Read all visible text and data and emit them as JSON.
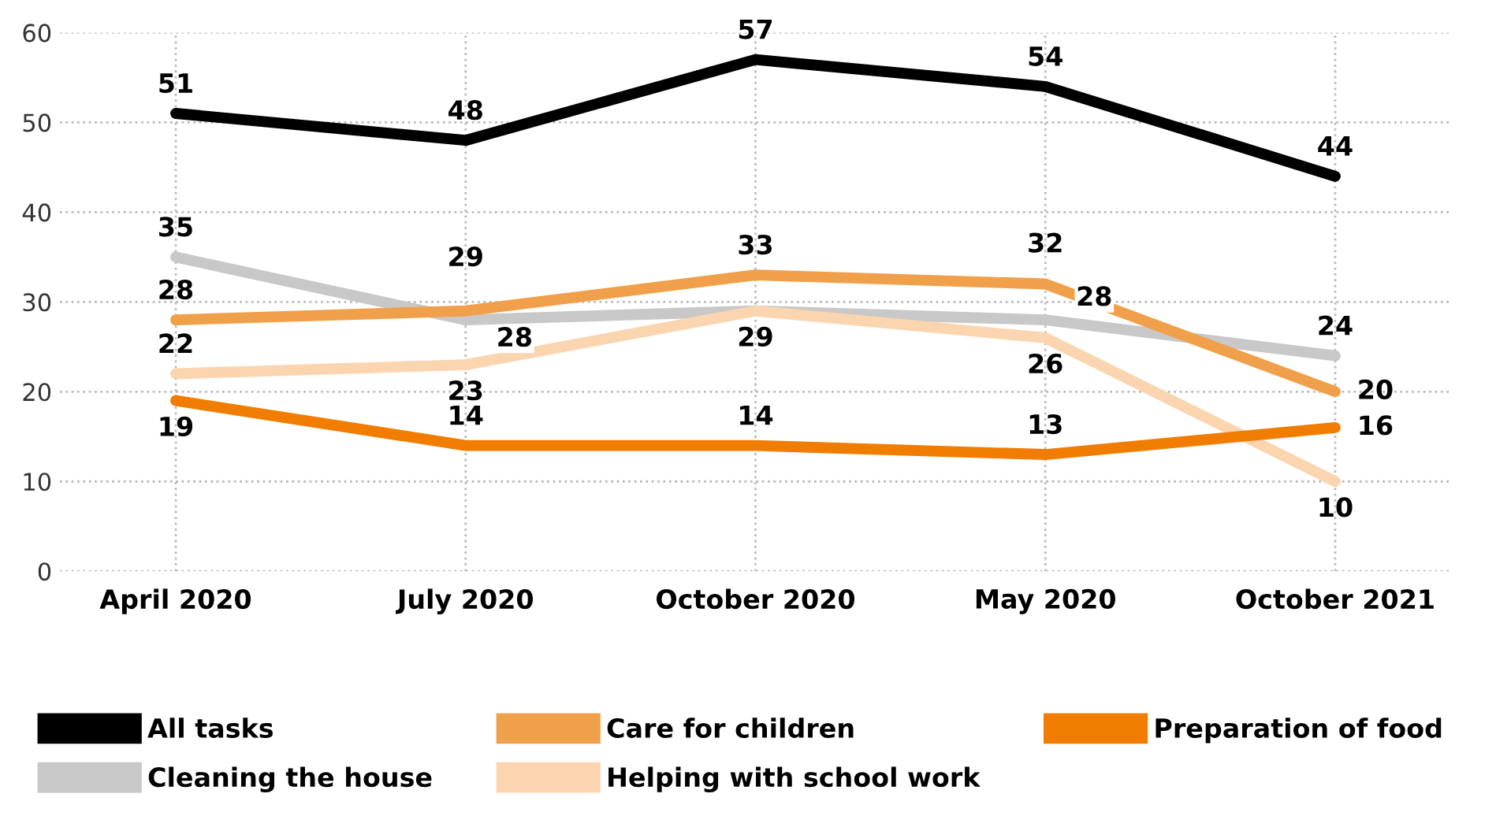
{
  "chart_data": {
    "type": "line",
    "categories": [
      "April 2020",
      "July 2020",
      "October 2020",
      "May 2020",
      "October 2021"
    ],
    "series": [
      {
        "name": "All tasks",
        "color": "#000000",
        "values": [
          51,
          48,
          57,
          54,
          44
        ],
        "value_labels": [
          "51",
          "48",
          "57",
          "54",
          "44"
        ]
      },
      {
        "name": "Cleaning the house",
        "color": "#c8c8c8",
        "values": [
          35,
          28,
          29,
          28,
          24
        ],
        "value_labels": [
          "35",
          "28",
          null,
          "28",
          "24"
        ]
      },
      {
        "name": "Care for children",
        "color": "#f0a04b",
        "values": [
          28,
          29,
          33,
          32,
          20
        ],
        "value_labels": [
          "28",
          "29",
          "33",
          "32",
          "20"
        ]
      },
      {
        "name": "Helping with school work",
        "color": "#fad5b0",
        "values": [
          22,
          23,
          29,
          26,
          10
        ],
        "value_labels": [
          "22",
          "23",
          "29",
          "26",
          "10"
        ]
      },
      {
        "name": "Preparation of food",
        "color": "#f07d00",
        "values": [
          19,
          14,
          14,
          13,
          16
        ],
        "value_labels": [
          "19",
          "14",
          "14",
          "13",
          "16"
        ]
      }
    ],
    "ylim": [
      0,
      60
    ],
    "yticks": [
      0,
      10,
      20,
      30,
      40,
      50,
      60
    ],
    "grid": true,
    "legend": "bottom",
    "marker": "none",
    "line_style": "solid"
  }
}
